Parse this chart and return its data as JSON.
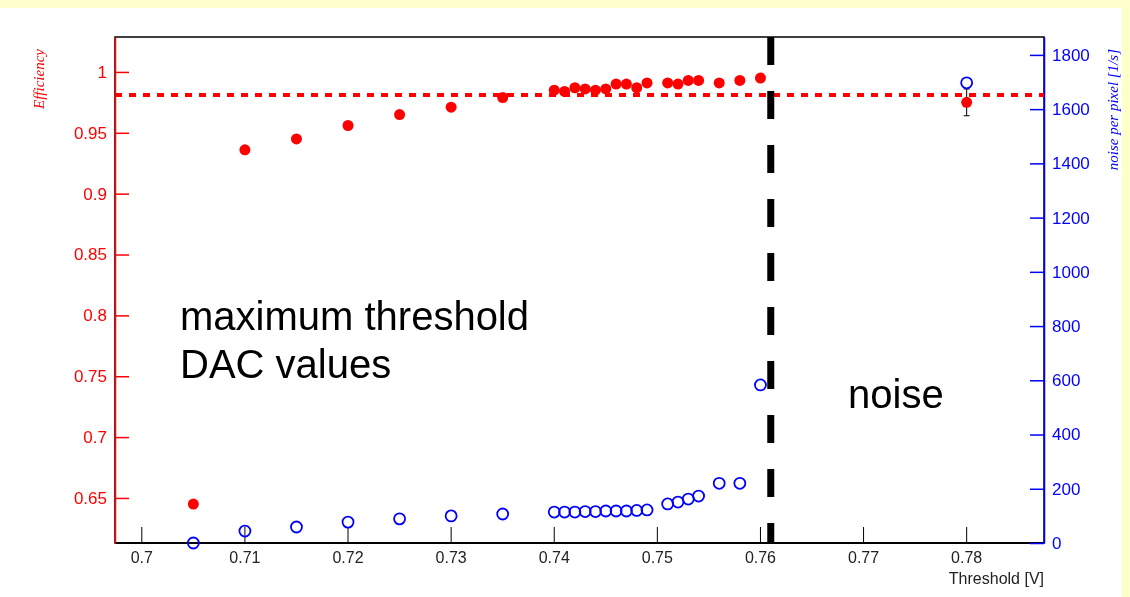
{
  "chart_data": {
    "type": "scatter",
    "xlabel": "Threshold [V]",
    "ylabel": "Efficiency",
    "y2label": "noise per pixel [1/s]",
    "xlim": [
      0.6974,
      0.7875
    ],
    "xticks": [
      0.7,
      0.71,
      0.72,
      0.73,
      0.74,
      0.75,
      0.76,
      0.77,
      0.78
    ],
    "ylim": [
      0.613,
      1.0287
    ],
    "yticks": [
      0.65,
      0.7,
      0.75,
      0.8,
      0.85,
      0.9,
      0.95,
      1
    ],
    "y2lim": [
      0,
      1866
    ],
    "y2ticks": [
      0,
      200,
      400,
      600,
      800,
      1000,
      1200,
      1400,
      1600,
      1800
    ],
    "marker": "circle",
    "series": [
      {
        "color": "#ff0000",
        "x": [
          0.705,
          0.71,
          0.715,
          0.72,
          0.725,
          0.73,
          0.735,
          0.74,
          0.741,
          0.742,
          0.743,
          0.744,
          0.745,
          0.746,
          0.747,
          0.748,
          0.749,
          0.751,
          0.752,
          0.753,
          0.754,
          0.756,
          0.758,
          0.76,
          0.78
        ],
        "values": [
          0.645,
          0.936,
          0.945,
          0.956,
          0.965,
          0.971,
          0.979,
          0.985,
          0.984,
          0.987,
          0.986,
          0.985,
          0.986,
          0.99,
          0.99,
          0.987,
          0.991,
          0.991,
          0.99,
          0.993,
          0.993,
          0.991,
          0.993,
          0.995,
          0.975
        ],
        "errors": [
          null,
          null,
          null,
          null,
          null,
          null,
          null,
          null,
          null,
          null,
          null,
          null,
          null,
          null,
          null,
          null,
          null,
          null,
          null,
          null,
          null,
          null,
          null,
          null,
          0.011
        ]
      },
      {
        "color": "#0000ff",
        "axis": "y2",
        "x": [
          0.705,
          0.71,
          0.715,
          0.72,
          0.725,
          0.73,
          0.735,
          0.74,
          0.741,
          0.742,
          0.743,
          0.744,
          0.745,
          0.746,
          0.747,
          0.748,
          0.749,
          0.751,
          0.752,
          0.753,
          0.754,
          0.756,
          0.758,
          0.76,
          0.78
        ],
        "values": [
          0,
          44,
          59,
          77,
          89,
          100,
          107,
          114,
          114,
          114,
          116,
          116,
          118,
          118,
          118,
          120,
          122,
          144,
          151,
          162,
          173,
          220,
          220,
          583,
          1697
        ]
      }
    ],
    "ref_lines": [
      {
        "axis": "y",
        "value": 0.981,
        "color": "#ff0000",
        "line_style": "dotted"
      },
      {
        "axis": "x",
        "value": 0.761,
        "color": "#000000",
        "line_style": "dashed"
      }
    ],
    "annotations": [
      "maximum threshold\nDAC values",
      "noise"
    ]
  }
}
